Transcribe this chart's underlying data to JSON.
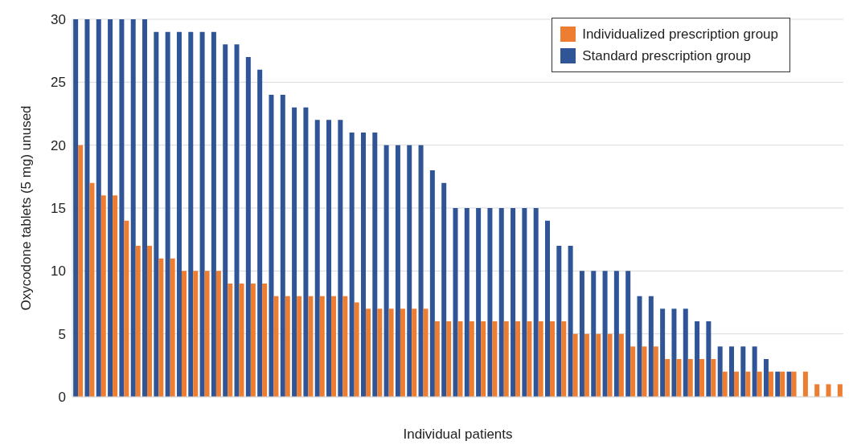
{
  "chart_data": {
    "type": "bar",
    "xlabel": "Individual patients",
    "ylabel": "Oxycodone tablets (5 mg) unused",
    "categories": [
      null,
      null,
      null,
      null,
      null,
      null,
      null,
      null,
      null,
      null,
      null,
      null,
      null,
      null,
      null,
      null,
      null,
      null,
      null,
      null,
      null,
      null,
      null,
      null,
      null,
      null,
      null,
      null,
      null,
      null,
      null,
      null,
      null,
      null,
      null,
      null,
      null,
      null,
      null,
      null,
      null,
      null,
      null,
      null,
      null,
      null,
      null,
      null,
      null,
      null,
      null,
      null,
      null,
      null,
      null,
      null,
      null,
      null,
      null,
      null,
      null,
      null,
      null,
      null,
      null,
      null,
      null
    ],
    "series": [
      {
        "name": "Individualized prescription group",
        "color": "#ed7d31",
        "values": [
          20,
          17,
          16,
          16,
          14,
          12,
          12,
          11,
          11,
          10,
          10,
          10,
          10,
          9,
          9,
          9,
          9,
          8,
          8,
          8,
          8,
          8,
          8,
          8,
          7.5,
          7,
          7,
          7,
          7,
          7,
          7,
          6,
          6,
          6,
          6,
          6,
          6,
          6,
          6,
          6,
          6,
          6,
          6,
          5,
          5,
          5,
          5,
          5,
          4,
          4,
          4,
          3,
          3,
          3,
          3,
          3,
          2,
          2,
          2,
          2,
          2,
          2,
          2,
          2,
          1,
          1,
          1
        ]
      },
      {
        "name": "Standard prescription group",
        "color": "#2f5597",
        "values": [
          30,
          30,
          30,
          30,
          30,
          30,
          30,
          29,
          29,
          29,
          29,
          29,
          29,
          28,
          28,
          27,
          26,
          24,
          24,
          23,
          23,
          22,
          22,
          22,
          21,
          21,
          21,
          20,
          20,
          20,
          20,
          18,
          17,
          15,
          15,
          15,
          15,
          15,
          15,
          15,
          15,
          14,
          12,
          12,
          10,
          10,
          10,
          10,
          10,
          8,
          8,
          7,
          7,
          7,
          6,
          6,
          4,
          4,
          4,
          4,
          3,
          2,
          2,
          null,
          null,
          null,
          null
        ]
      }
    ],
    "ylim": [
      0,
      30
    ],
    "yticks": [
      0,
      5,
      10,
      15,
      20,
      25,
      30
    ],
    "grid": "y",
    "legend": "top right"
  }
}
